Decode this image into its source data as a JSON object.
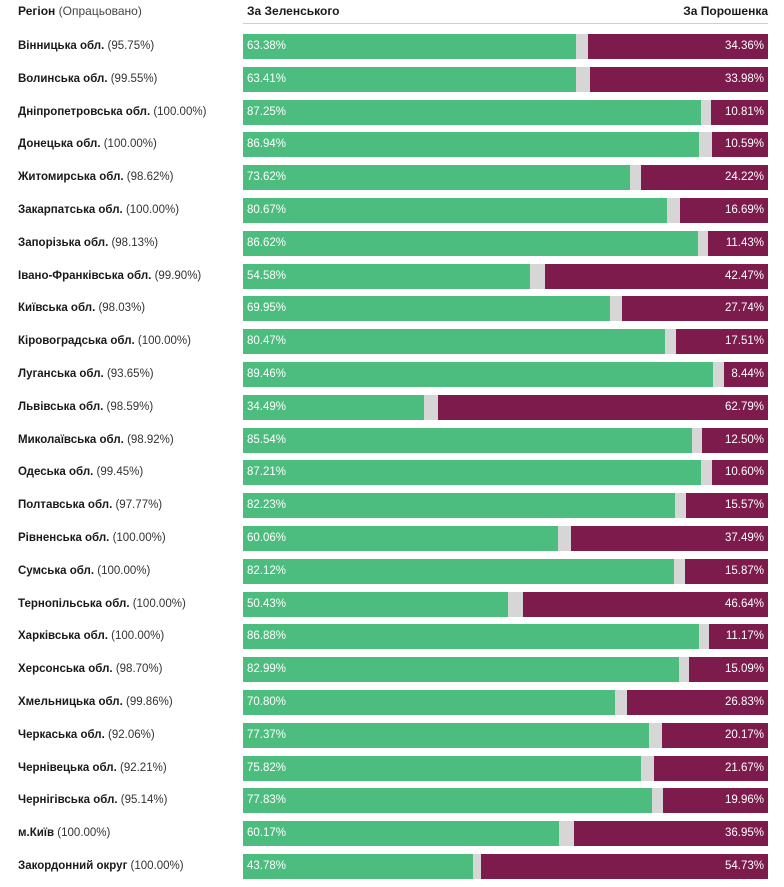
{
  "header": {
    "region_label": "Регіон",
    "processed_label": "(Опрацьовано)",
    "zelensky_label": "За Зеленського",
    "poroshenko_label": "За Порошенка"
  },
  "colors": {
    "zelensky": "#4dbd7f",
    "poroshenko": "#7d1b4c",
    "other": "#d6d6d6"
  },
  "chart_data": {
    "type": "bar",
    "orientation": "horizontal",
    "stacked": true,
    "xlim": [
      0,
      100
    ],
    "series": [
      {
        "name": "За Зеленського",
        "color": "#4dbd7f"
      },
      {
        "name": "За Порошенка",
        "color": "#7d1b4c"
      }
    ],
    "rows": [
      {
        "region": "Вінницька обл.",
        "processed": "(95.75%)",
        "z": 63.38,
        "p": 34.36,
        "z_label": "63.38%",
        "p_label": "34.36%"
      },
      {
        "region": "Волинська обл.",
        "processed": "(99.55%)",
        "z": 63.41,
        "p": 33.98,
        "z_label": "63.41%",
        "p_label": "33.98%"
      },
      {
        "region": "Дніпропетровська обл.",
        "processed": "(100.00%)",
        "z": 87.25,
        "p": 10.81,
        "z_label": "87.25%",
        "p_label": "10.81%"
      },
      {
        "region": "Донецька обл.",
        "processed": "(100.00%)",
        "z": 86.94,
        "p": 10.59,
        "z_label": "86.94%",
        "p_label": "10.59%"
      },
      {
        "region": "Житомирська обл.",
        "processed": "(98.62%)",
        "z": 73.62,
        "p": 24.22,
        "z_label": "73.62%",
        "p_label": "24.22%"
      },
      {
        "region": "Закарпатська обл.",
        "processed": "(100.00%)",
        "z": 80.67,
        "p": 16.69,
        "z_label": "80.67%",
        "p_label": "16.69%"
      },
      {
        "region": "Запорізька обл.",
        "processed": "(98.13%)",
        "z": 86.62,
        "p": 11.43,
        "z_label": "86.62%",
        "p_label": "11.43%"
      },
      {
        "region": "Івано-Франківська обл.",
        "processed": "(99.90%)",
        "z": 54.58,
        "p": 42.47,
        "z_label": "54.58%",
        "p_label": "42.47%"
      },
      {
        "region": "Київська обл.",
        "processed": "(98.03%)",
        "z": 69.95,
        "p": 27.74,
        "z_label": "69.95%",
        "p_label": "27.74%"
      },
      {
        "region": "Кіровоградська обл.",
        "processed": "(100.00%)",
        "z": 80.47,
        "p": 17.51,
        "z_label": "80.47%",
        "p_label": "17.51%"
      },
      {
        "region": "Луганська обл.",
        "processed": "(93.65%)",
        "z": 89.46,
        "p": 8.44,
        "z_label": "89.46%",
        "p_label": "8.44%"
      },
      {
        "region": "Львівська обл.",
        "processed": "(98.59%)",
        "z": 34.49,
        "p": 62.79,
        "z_label": "34.49%",
        "p_label": "62.79%"
      },
      {
        "region": "Миколаївська обл.",
        "processed": "(98.92%)",
        "z": 85.54,
        "p": 12.5,
        "z_label": "85.54%",
        "p_label": "12.50%"
      },
      {
        "region": "Одеська обл.",
        "processed": "(99.45%)",
        "z": 87.21,
        "p": 10.6,
        "z_label": "87.21%",
        "p_label": "10.60%"
      },
      {
        "region": "Полтавська обл.",
        "processed": "(97.77%)",
        "z": 82.23,
        "p": 15.57,
        "z_label": "82.23%",
        "p_label": "15.57%"
      },
      {
        "region": "Рівненська обл.",
        "processed": "(100.00%)",
        "z": 60.06,
        "p": 37.49,
        "z_label": "60.06%",
        "p_label": "37.49%"
      },
      {
        "region": "Сумська обл.",
        "processed": "(100.00%)",
        "z": 82.12,
        "p": 15.87,
        "z_label": "82.12%",
        "p_label": "15.87%"
      },
      {
        "region": "Тернопільська обл.",
        "processed": "(100.00%)",
        "z": 50.43,
        "p": 46.64,
        "z_label": "50.43%",
        "p_label": "46.64%"
      },
      {
        "region": "Харківська обл.",
        "processed": "(100.00%)",
        "z": 86.88,
        "p": 11.17,
        "z_label": "86.88%",
        "p_label": "11.17%"
      },
      {
        "region": "Херсонська обл.",
        "processed": "(98.70%)",
        "z": 82.99,
        "p": 15.09,
        "z_label": "82.99%",
        "p_label": "15.09%"
      },
      {
        "region": "Хмельницька обл.",
        "processed": "(99.86%)",
        "z": 70.8,
        "p": 26.83,
        "z_label": "70.80%",
        "p_label": "26.83%"
      },
      {
        "region": "Черкаська обл.",
        "processed": "(92.06%)",
        "z": 77.37,
        "p": 20.17,
        "z_label": "77.37%",
        "p_label": "20.17%"
      },
      {
        "region": "Чернівецька обл.",
        "processed": "(92.21%)",
        "z": 75.82,
        "p": 21.67,
        "z_label": "75.82%",
        "p_label": "21.67%"
      },
      {
        "region": "Чернігівська обл.",
        "processed": "(95.14%)",
        "z": 77.83,
        "p": 19.96,
        "z_label": "77.83%",
        "p_label": "19.96%"
      },
      {
        "region": "м.Київ",
        "processed": "(100.00%)",
        "z": 60.17,
        "p": 36.95,
        "z_label": "60.17%",
        "p_label": "36.95%"
      },
      {
        "region": "Закордонний округ",
        "processed": "(100.00%)",
        "z": 43.78,
        "p": 54.73,
        "z_label": "43.78%",
        "p_label": "54.73%"
      }
    ]
  }
}
